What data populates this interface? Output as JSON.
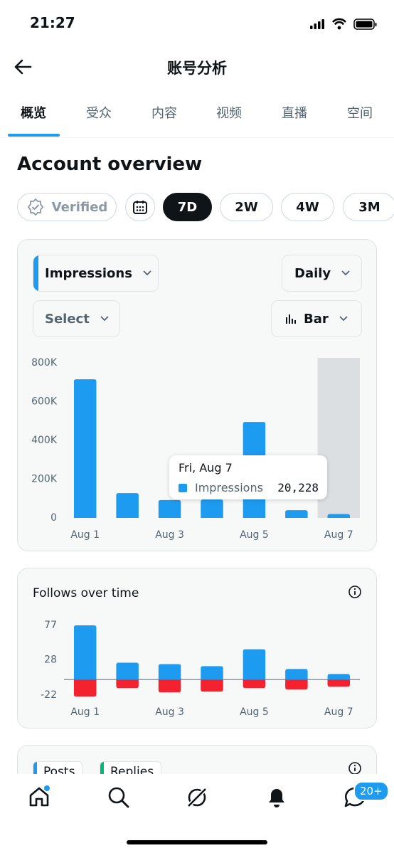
{
  "status_bar": {
    "time": "21:27"
  },
  "header": {
    "title": "账号分析"
  },
  "tabs": {
    "items": [
      "概览",
      "受众",
      "内容",
      "视频",
      "直播",
      "空间"
    ],
    "active": 0
  },
  "section": {
    "title": "Account overview"
  },
  "filters": {
    "verified": "Verified",
    "ranges": [
      "7D",
      "2W",
      "4W",
      "3M"
    ],
    "active": 0
  },
  "controls": {
    "metric": "Impressions",
    "interval": "Daily",
    "compare": "Select",
    "chart_kind": "Bar"
  },
  "chart_data": [
    {
      "type": "bar",
      "categories": [
        "Aug 1",
        null,
        "Aug 3",
        null,
        "Aug 5",
        null,
        "Aug 7"
      ],
      "series": [
        {
          "name": "Impressions",
          "color": "#1d9bf0",
          "values": [
            715000,
            128000,
            92000,
            95000,
            495000,
            40000,
            20228
          ]
        }
      ],
      "ylim": [
        0,
        800000
      ],
      "yticks": [
        0,
        {
          "value": 200000,
          "label": "200K"
        },
        {
          "value": 400000,
          "label": "400K"
        },
        {
          "value": 600000,
          "label": "600K"
        },
        {
          "value": 800000,
          "label": "800K"
        }
      ],
      "tooltip": {
        "index": 6,
        "title": "Fri, Aug 7",
        "label": "Impressions",
        "value_label": "20,228"
      }
    },
    {
      "type": "bar",
      "stacked": true,
      "title": "Follows over time",
      "categories": [
        "Aug 1",
        null,
        "Aug 3",
        null,
        "Aug 5",
        null,
        "Aug 7"
      ],
      "series": [
        {
          "color": "#1d9bf0",
          "values": [
            77,
            24,
            22,
            19,
            43,
            15,
            8
          ]
        },
        {
          "color": "#f4212e",
          "values": [
            -24,
            -12,
            -18,
            -17,
            -12,
            -14,
            -10
          ]
        }
      ],
      "ylim": [
        -26,
        82
      ],
      "yticks": [
        -22,
        28,
        77
      ],
      "zero_line": true
    }
  ],
  "next_card": {
    "legend": [
      {
        "name": "Posts",
        "color": "#1d9bf0"
      },
      {
        "name": "Replies",
        "color": "#00ba7c"
      }
    ]
  },
  "nav": {
    "badge": "20+"
  }
}
